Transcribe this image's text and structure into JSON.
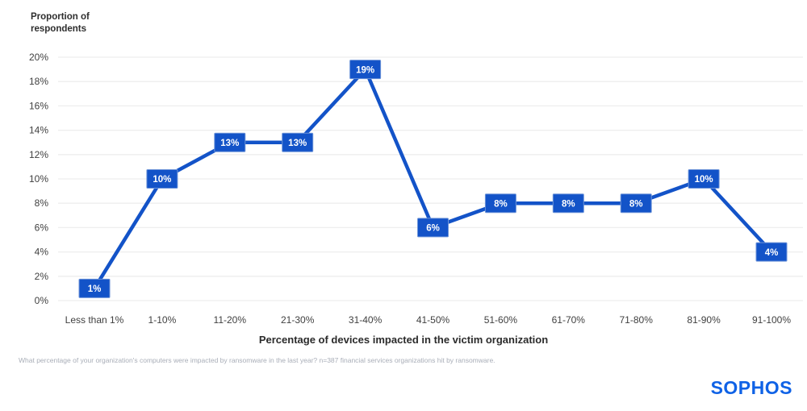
{
  "page": {
    "background": "#ffffff"
  },
  "chart_data": {
    "type": "line",
    "title": "Proportion of\nrespondents",
    "categories": [
      "Less than 1%",
      "1-10%",
      "11-20%",
      "21-30%",
      "31-40%",
      "41-50%",
      "51-60%",
      "61-70%",
      "71-80%",
      "81-90%",
      "91-100%"
    ],
    "values": [
      1,
      10,
      13,
      13,
      19,
      6,
      8,
      8,
      8,
      10,
      4
    ],
    "data_labels": [
      "1%",
      "10%",
      "13%",
      "13%",
      "19%",
      "6%",
      "8%",
      "8%",
      "8%",
      "10%",
      "4%"
    ],
    "xlabel": "Percentage of devices impacted in the victim organization",
    "ylabel": "Proportion of respondents",
    "ylim": [
      0,
      20
    ],
    "y_tick_step": 2,
    "y_tick_labels": [
      "0%",
      "2%",
      "4%",
      "6%",
      "8%",
      "10%",
      "12%",
      "14%",
      "16%",
      "18%",
      "20%"
    ],
    "grid": "horizontal",
    "legend": "none",
    "colors": {
      "line": "#1353c8",
      "marker_fill": "#1353c8",
      "marker_stroke": "#6c93d8",
      "marker_text": "#ffffff",
      "gridline": "#eeeeee",
      "tick_text": "#404040"
    }
  },
  "footnote": "What percentage of your organization's computers were impacted by ransomware in the last year? n=387 financial services organizations hit by ransomware.",
  "logo": {
    "text": "SOPHOS",
    "color": "#0f62e6"
  }
}
